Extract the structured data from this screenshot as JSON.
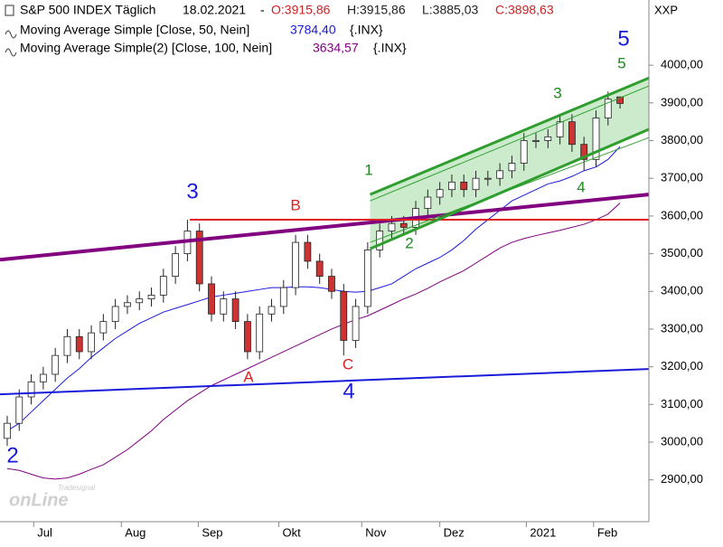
{
  "chart_data": {
    "type": "candlestick",
    "header": {
      "title": "S&P 500 INDEX Täglich",
      "date": "18.02.2021",
      "separator": "-",
      "values": [
        3915.86,
        3915.86,
        3885.03,
        3898.63
      ],
      "value_labels": [
        "O:3915,86",
        "H:3915,86",
        "L:3885,03",
        "C:3898,63"
      ]
    },
    "axis_label": "XXP",
    "candles": {
      "up_color": "#ffffff",
      "down_color": "#cc3333",
      "open": [
        3010,
        3050,
        3120,
        3160,
        3180,
        3230,
        3280,
        3240,
        3290,
        3320,
        3360,
        3370,
        3380,
        3390,
        3440,
        3500,
        3560,
        3420,
        3340,
        3380,
        3320,
        3240,
        3340,
        3360,
        3410,
        3530,
        3480,
        3440,
        3400,
        3270,
        3360,
        3510,
        3560,
        3580,
        3570,
        3620,
        3650,
        3670,
        3690,
        3670,
        3700,
        3700,
        3720,
        3740,
        3800,
        3800,
        3810,
        3850,
        3790,
        3750,
        3860
      ],
      "high": [
        3070,
        3140,
        3180,
        3200,
        3250,
        3300,
        3300,
        3310,
        3340,
        3380,
        3390,
        3400,
        3410,
        3460,
        3520,
        3590,
        3580,
        3440,
        3400,
        3400,
        3340,
        3360,
        3380,
        3430,
        3550,
        3550,
        3500,
        3460,
        3420,
        3380,
        3530,
        3580,
        3600,
        3600,
        3640,
        3670,
        3690,
        3710,
        3710,
        3720,
        3720,
        3740,
        3760,
        3820,
        3820,
        3830,
        3870,
        3870,
        3810,
        3880,
        3930
      ],
      "low": [
        2990,
        3030,
        3100,
        3140,
        3160,
        3210,
        3220,
        3220,
        3270,
        3300,
        3340,
        3350,
        3360,
        3370,
        3420,
        3480,
        3400,
        3320,
        3320,
        3300,
        3220,
        3220,
        3320,
        3340,
        3390,
        3460,
        3420,
        3380,
        3230,
        3250,
        3340,
        3490,
        3540,
        3550,
        3550,
        3600,
        3630,
        3650,
        3650,
        3650,
        3680,
        3680,
        3700,
        3720,
        3780,
        3780,
        3790,
        3770,
        3720,
        3730,
        3840
      ],
      "close": [
        3050,
        3120,
        3160,
        3180,
        3230,
        3280,
        3240,
        3290,
        3320,
        3360,
        3370,
        3380,
        3390,
        3440,
        3500,
        3560,
        3420,
        3340,
        3380,
        3320,
        3240,
        3340,
        3360,
        3410,
        3530,
        3480,
        3440,
        3400,
        3270,
        3360,
        3510,
        3560,
        3580,
        3570,
        3620,
        3650,
        3670,
        3690,
        3670,
        3700,
        3700,
        3720,
        3740,
        3800,
        3800,
        3810,
        3850,
        3790,
        3750,
        3860,
        3910
      ]
    },
    "series": [
      {
        "name": "Moving Average Simple [Close, 50, Nein]",
        "color": "#1a1adb",
        "suffix": "{.INX}",
        "values": [
          3030,
          3050,
          3080,
          3110,
          3140,
          3170,
          3195,
          3225,
          3250,
          3275,
          3295,
          3315,
          3330,
          3345,
          3355,
          3365,
          3375,
          3385,
          3390,
          3395,
          3400,
          3405,
          3410,
          3410,
          3412,
          3412,
          3410,
          3405,
          3400,
          3398,
          3400,
          3410,
          3420,
          3440,
          3460,
          3475,
          3490,
          3510,
          3535,
          3565,
          3590,
          3615,
          3640,
          3655,
          3670,
          3685,
          3693,
          3705,
          3720,
          3730,
          3750,
          3784.4
        ],
        "value_labels": [
          null,
          null,
          null,
          null,
          null,
          null,
          null,
          null,
          null,
          null,
          null,
          null,
          null,
          null,
          null,
          null,
          null,
          null,
          null,
          null,
          null,
          null,
          null,
          null,
          null,
          null,
          null,
          null,
          null,
          null,
          null,
          null,
          null,
          null,
          null,
          null,
          null,
          null,
          null,
          null,
          null,
          null,
          null,
          null,
          null,
          null,
          null,
          null,
          null,
          null,
          null,
          "3784,40"
        ]
      },
      {
        "name": "Moving Average Simple(2) [Close, 100, Nein]",
        "color": "#800080",
        "suffix": "{.INX}",
        "values": [
          2930,
          2925,
          2915,
          2905,
          2902,
          2905,
          2915,
          2928,
          2940,
          2960,
          2980,
          3005,
          3030,
          3060,
          3085,
          3110,
          3130,
          3150,
          3165,
          3180,
          3195,
          3210,
          3225,
          3240,
          3255,
          3270,
          3285,
          3300,
          3313,
          3325,
          3335,
          3350,
          3365,
          3380,
          3393,
          3408,
          3425,
          3440,
          3455,
          3475,
          3495,
          3515,
          3530,
          3540,
          3548,
          3555,
          3562,
          3570,
          3578,
          3590,
          3605,
          3634.57
        ],
        "value_labels": [
          null,
          null,
          null,
          null,
          null,
          null,
          null,
          null,
          null,
          null,
          null,
          null,
          null,
          null,
          null,
          null,
          null,
          null,
          null,
          null,
          null,
          null,
          null,
          null,
          null,
          null,
          null,
          null,
          null,
          null,
          null,
          null,
          null,
          null,
          null,
          null,
          null,
          null,
          null,
          null,
          null,
          null,
          null,
          null,
          null,
          null,
          null,
          null,
          null,
          null,
          null,
          "3634,57"
        ]
      }
    ],
    "trendlines": [
      {
        "color": "#800080",
        "width": 4,
        "x": [
          -0.6,
          53.4
        ],
        "y": [
          3484,
          3657
        ]
      },
      {
        "color": "#1a1adb",
        "width": 2,
        "x": [
          -0.6,
          53.4
        ],
        "y": [
          3127,
          3194
        ]
      },
      {
        "color": "#e02020",
        "width": 2,
        "x": [
          15.2,
          53.4
        ],
        "y": [
          3590,
          3590
        ]
      },
      {
        "color": "#2f9e2f",
        "width": 3,
        "x": [
          30.2,
          53.4
        ],
        "y": [
          3657,
          3966
        ]
      },
      {
        "color": "#2f9e2f",
        "width": 3,
        "x": [
          30.2,
          53.4
        ],
        "y": [
          3513,
          3830
        ]
      },
      {
        "color": "#2f9e2f",
        "width": 1,
        "x": [
          30.2,
          53.4
        ],
        "y": [
          3640,
          3945
        ]
      },
      {
        "color": "#2f9e2f",
        "width": 1,
        "x": [
          30.2,
          53.4
        ],
        "y": [
          3530,
          3808
        ]
      }
    ],
    "channel": {
      "color": "#bfe5bf",
      "x": [
        30.2,
        53.4
      ],
      "upper": [
        3657,
        3966
      ],
      "lower": [
        3513,
        3830
      ]
    },
    "waves": [
      "2",
      "3",
      "B",
      "A",
      "C",
      "4",
      "1",
      "2",
      "3",
      "4",
      "5",
      "5"
    ],
    "logo": [
      "Tradesignal",
      "onLine"
    ],
    "xlim": [
      -0.6,
      53.4
    ],
    "ylim": [
      2789,
      4173
    ],
    "xticks": [
      {
        "value": 2.2,
        "label": "Jul"
      },
      {
        "value": 9.5,
        "label": "Aug"
      },
      {
        "value": 15.9,
        "label": "Sep"
      },
      {
        "value": 22.6,
        "label": "Okt"
      },
      {
        "value": 29.5,
        "label": "Nov"
      },
      {
        "value": 36,
        "label": "Dez"
      },
      {
        "value": 43.2,
        "label": "2021"
      },
      {
        "value": 48.8,
        "label": "Feb"
      }
    ],
    "yticks": [
      {
        "value": 2900,
        "label": "2900,00"
      },
      {
        "value": 3000,
        "label": "3000,00"
      },
      {
        "value": 3100,
        "label": "3100,00"
      },
      {
        "value": 3200,
        "label": "3200,00"
      },
      {
        "value": 3300,
        "label": "3300,00"
      },
      {
        "value": 3400,
        "label": "3400,00"
      },
      {
        "value": 3500,
        "label": "3500,00"
      },
      {
        "value": 3600,
        "label": "3600,00"
      },
      {
        "value": 3700,
        "label": "3700,00"
      },
      {
        "value": 3800,
        "label": "3800,00"
      },
      {
        "value": 3900,
        "label": "3900,00"
      },
      {
        "value": 4000,
        "label": "4000,00"
      }
    ]
  }
}
